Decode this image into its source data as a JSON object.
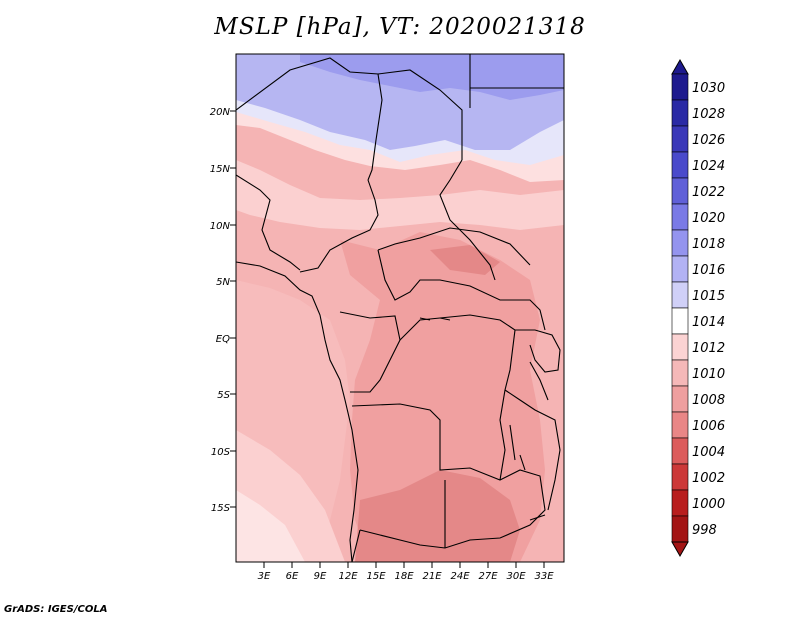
{
  "title": "MSLP [hPa], VT: 2020021318",
  "credit": "GrADS: IGES/COLA",
  "lat_labels": [
    "20N",
    "15N",
    "10N",
    "5N",
    "EQ",
    "5S",
    "10S",
    "15S"
  ],
  "lon_labels": [
    "3E",
    "6E",
    "9E",
    "12E",
    "15E",
    "18E",
    "21E",
    "24E",
    "27E",
    "30E",
    "33E"
  ],
  "legend": {
    "levels": [
      "1030",
      "1028",
      "1026",
      "1024",
      "1022",
      "1020",
      "1018",
      "1016",
      "1015",
      "1014",
      "1012",
      "1010",
      "1008",
      "1006",
      "1004",
      "1002",
      "1000",
      "998"
    ],
    "colors": [
      "#1e1a8e",
      "#2a2aa5",
      "#3a38b8",
      "#4a4acb",
      "#6060d8",
      "#7a7ae6",
      "#9494ef",
      "#b2b2f4",
      "#d0d0f8",
      "#ffffff",
      "#fbd3d3",
      "#f5b8b8",
      "#ef9f9f",
      "#e98686",
      "#dc5c5c",
      "#cc3838",
      "#b81e1e",
      "#a31515"
    ]
  },
  "map": {
    "field": "MSLP",
    "units": "hPa",
    "colors": {
      "1016": "#b6b6f2",
      "1015": "#d6d6f8",
      "1018": "#9c9cee",
      "1014": "#fdeaea",
      "1012": "#fbd0d0",
      "1010": "#f5b4b4",
      "1008": "#f0a0a0",
      "1006": "#e48888"
    }
  }
}
